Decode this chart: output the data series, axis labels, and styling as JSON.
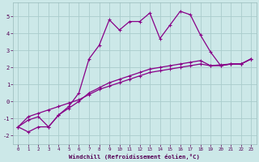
{
  "xlabel": "Windchill (Refroidissement éolien,°C)",
  "background_color": "#cce8e8",
  "grid_color": "#aacccc",
  "line_color": "#880088",
  "xlim": [
    -0.5,
    23.5
  ],
  "ylim": [
    -2.5,
    5.8
  ],
  "xticks": [
    0,
    1,
    2,
    3,
    4,
    5,
    6,
    7,
    8,
    9,
    10,
    11,
    12,
    13,
    14,
    15,
    16,
    17,
    18,
    19,
    20,
    21,
    22,
    23
  ],
  "yticks": [
    -2,
    -1,
    0,
    1,
    2,
    3,
    4,
    5
  ],
  "series1_x": [
    0,
    1,
    2,
    3,
    4,
    5,
    6,
    7,
    8,
    9,
    10,
    11,
    12,
    13,
    14,
    15,
    16,
    17,
    18,
    19,
    20,
    21,
    22,
    23
  ],
  "series1_y": [
    -1.5,
    -1.8,
    -1.5,
    -1.5,
    -0.8,
    -0.3,
    0.5,
    2.5,
    3.3,
    4.8,
    4.2,
    4.7,
    4.7,
    5.2,
    3.7,
    4.5,
    5.3,
    5.1,
    3.9,
    2.9,
    2.1,
    2.2,
    2.2,
    2.5
  ],
  "series2_x": [
    0,
    1,
    2,
    3,
    4,
    5,
    6,
    7,
    8,
    9,
    10,
    11,
    12,
    13,
    14,
    15,
    16,
    17,
    18,
    19,
    20,
    21,
    22,
    23
  ],
  "series2_y": [
    -1.5,
    -0.9,
    -0.7,
    -0.5,
    -0.3,
    -0.1,
    0.1,
    0.4,
    0.7,
    0.9,
    1.1,
    1.3,
    1.5,
    1.7,
    1.8,
    1.9,
    2.0,
    2.1,
    2.2,
    2.1,
    2.1,
    2.2,
    2.2,
    2.5
  ],
  "series3_x": [
    0,
    1,
    2,
    3,
    4,
    5,
    6,
    7,
    8,
    9,
    10,
    11,
    12,
    13,
    14,
    15,
    16,
    17,
    18,
    19,
    20,
    21,
    22,
    23
  ],
  "series3_y": [
    -1.5,
    -1.1,
    -0.9,
    -1.5,
    -0.8,
    -0.4,
    0.0,
    0.5,
    0.8,
    1.1,
    1.3,
    1.5,
    1.7,
    1.9,
    2.0,
    2.1,
    2.2,
    2.3,
    2.4,
    2.1,
    2.15,
    2.2,
    2.2,
    2.5
  ]
}
